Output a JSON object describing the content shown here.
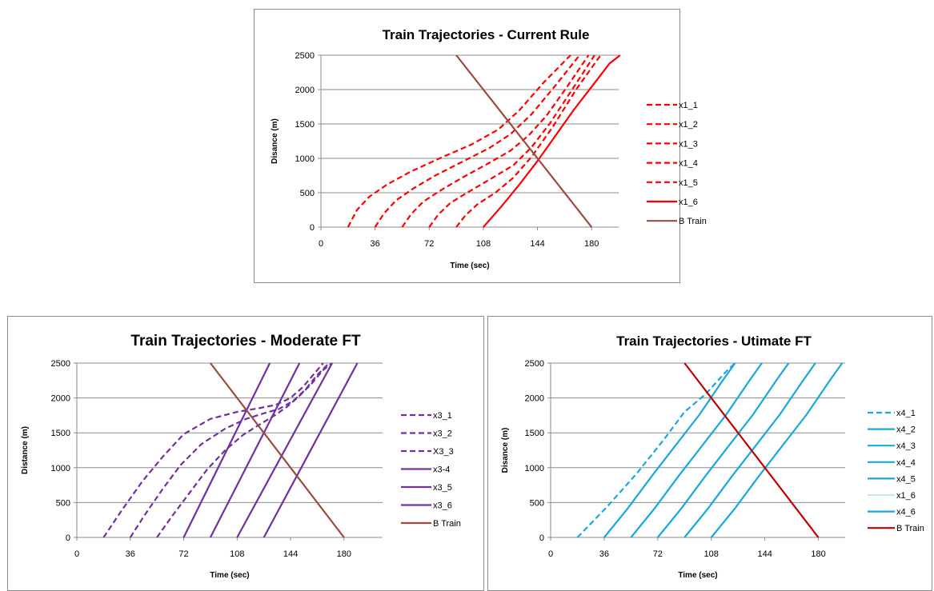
{
  "chart_data": [
    {
      "type": "line",
      "title": "Train Trajectories - Current Rule",
      "xlabel": "Time (sec)",
      "ylabel": "Disance (m)",
      "xlim": [
        0,
        198
      ],
      "ylim": [
        0,
        2500
      ],
      "xticks": [
        "0",
        "36",
        "72",
        "108",
        "144",
        "180"
      ],
      "yticks": [
        "0",
        "500",
        "1000",
        "1500",
        "2000",
        "2500"
      ],
      "grid": "horizontal",
      "legend": "right",
      "series": [
        {
          "name": "x1_1",
          "color": "#ff0000",
          "dash": true,
          "x": [
            18,
            24,
            32,
            44,
            60,
            80,
            100,
            118,
            132,
            148,
            166
          ],
          "y": [
            0,
            250,
            440,
            620,
            810,
            1010,
            1200,
            1420,
            1700,
            2100,
            2500
          ]
        },
        {
          "name": "x1_2",
          "color": "#ff0000",
          "dash": true,
          "x": [
            36,
            42,
            50,
            62,
            76,
            94,
            112,
            126,
            140,
            156,
            172
          ],
          "y": [
            0,
            200,
            390,
            570,
            750,
            950,
            1150,
            1350,
            1640,
            2060,
            2500
          ]
        },
        {
          "name": "x1_3",
          "color": "#ff0000",
          "dash": true,
          "x": [
            54,
            60,
            68,
            80,
            94,
            110,
            126,
            138,
            150,
            164,
            178
          ],
          "y": [
            0,
            190,
            370,
            540,
            720,
            910,
            1110,
            1330,
            1620,
            2050,
            2500
          ]
        },
        {
          "name": "x1_4",
          "color": "#ff0000",
          "dash": true,
          "x": [
            72,
            78,
            86,
            98,
            112,
            128,
            140,
            152,
            168,
            182
          ],
          "y": [
            0,
            180,
            350,
            510,
            690,
            900,
            1160,
            1500,
            2030,
            2500
          ]
        },
        {
          "name": "x1_5",
          "color": "#ff0000",
          "dash": true,
          "x": [
            90,
            96,
            104,
            116,
            128,
            140,
            154,
            170,
            186
          ],
          "y": [
            0,
            170,
            330,
            500,
            720,
            1020,
            1450,
            2010,
            2500
          ]
        },
        {
          "name": "x1_6",
          "color": "#ff0000",
          "dash": false,
          "x": [
            108,
            120,
            132,
            144,
            156,
            168,
            180,
            192,
            199
          ],
          "y": [
            0,
            300,
            620,
            960,
            1330,
            1700,
            2040,
            2380,
            2500
          ]
        },
        {
          "name": "B Train",
          "color": "#9a4a3e",
          "dash": false,
          "x": [
            90,
            180
          ],
          "y": [
            2500,
            0
          ]
        }
      ]
    },
    {
      "type": "line",
      "title": "Train Trajectories - Moderate FT",
      "xlabel": "Time (sec)",
      "ylabel": "Distance (m)",
      "xlim": [
        0,
        206
      ],
      "ylim": [
        0,
        2500
      ],
      "xticks": [
        "0",
        "36",
        "72",
        "108",
        "144",
        "180"
      ],
      "yticks": [
        "0",
        "500",
        "1000",
        "1500",
        "2000",
        "2500"
      ],
      "grid": "horizontal",
      "legend": "right",
      "series": [
        {
          "name": "x3_1",
          "color": "#7030a0",
          "dash": true,
          "x": [
            18,
            30,
            44,
            58,
            72,
            90,
            108,
            122,
            134,
            144,
            152,
            160,
            166
          ],
          "y": [
            0,
            380,
            800,
            1160,
            1480,
            1700,
            1800,
            1850,
            1900,
            2000,
            2150,
            2350,
            2500
          ]
        },
        {
          "name": "x3_2",
          "color": "#7030a0",
          "dash": true,
          "x": [
            36,
            46,
            58,
            70,
            84,
            100,
            114,
            126,
            136,
            146,
            154,
            162,
            170
          ],
          "y": [
            0,
            330,
            700,
            1040,
            1340,
            1560,
            1700,
            1780,
            1840,
            1960,
            2120,
            2330,
            2500
          ]
        },
        {
          "name": "X3_3",
          "color": "#7030a0",
          "dash": true,
          "x": [
            54,
            64,
            76,
            88,
            100,
            112,
            124,
            134,
            142,
            150,
            158,
            166,
            172
          ],
          "y": [
            0,
            300,
            640,
            980,
            1250,
            1470,
            1630,
            1760,
            1880,
            2030,
            2200,
            2400,
            2500
          ]
        },
        {
          "name": "x3-4",
          "color": "#7030a0",
          "dash": false,
          "x": [
            72,
            130
          ],
          "y": [
            0,
            2500
          ]
        },
        {
          "name": "x3_5",
          "color": "#7030a0",
          "dash": false,
          "x": [
            90,
            150
          ],
          "y": [
            0,
            2500
          ]
        },
        {
          "name": "x3_6",
          "color": "#7030a0",
          "dash": false,
          "x": [
            108,
            172
          ],
          "y": [
            0,
            2500
          ]
        },
        {
          "name": "",
          "color": "#7030a0",
          "dash": false,
          "x": [
            126,
            189
          ],
          "y": [
            0,
            2500
          ]
        },
        {
          "name": "B Train",
          "color": "#9a4a3e",
          "dash": false,
          "x": [
            90,
            180
          ],
          "y": [
            2500,
            0
          ]
        }
      ]
    },
    {
      "type": "line",
      "title": "Train Trajectories - Utimate FT",
      "xlabel": "Time (sec)",
      "ylabel": "Disance (m)",
      "xlim": [
        0,
        198
      ],
      "ylim": [
        0,
        2500
      ],
      "xticks": [
        "0",
        "36",
        "72",
        "108",
        "144",
        "180"
      ],
      "yticks": [
        "0",
        "500",
        "1000",
        "1500",
        "2000",
        "2500"
      ],
      "grid": "horizontal",
      "legend": "right",
      "series": [
        {
          "name": "x4_1",
          "color": "#1aa7dc",
          "dash": true,
          "x": [
            18,
            38,
            58,
            76,
            90,
            104,
            118,
            124
          ],
          "y": [
            0,
            440,
            920,
            1400,
            1800,
            2050,
            2380,
            2500
          ]
        },
        {
          "name": "x4_2",
          "color": "#1aa7dc",
          "dash": false,
          "x": [
            36,
            52,
            68,
            84,
            100,
            116,
            124
          ],
          "y": [
            0,
            420,
            880,
            1320,
            1760,
            2260,
            2500
          ]
        },
        {
          "name": "x4_3",
          "color": "#1aa7dc",
          "dash": false,
          "x": [
            54,
            70,
            86,
            102,
            118,
            134,
            142
          ],
          "y": [
            0,
            420,
            880,
            1320,
            1760,
            2260,
            2500
          ]
        },
        {
          "name": "x4_4",
          "color": "#1aa7dc",
          "dash": false,
          "x": [
            72,
            88,
            104,
            120,
            136,
            152,
            160
          ],
          "y": [
            0,
            420,
            880,
            1320,
            1760,
            2260,
            2500
          ]
        },
        {
          "name": "x4_5",
          "color": "#1aa7dc",
          "dash": false,
          "x": [
            90,
            106,
            122,
            138,
            154,
            170,
            178
          ],
          "y": [
            0,
            420,
            880,
            1320,
            1760,
            2260,
            2500
          ]
        },
        {
          "name": "x1_6",
          "color": "#9ac8e0",
          "dash": false,
          "thin": true,
          "x": [],
          "y": []
        },
        {
          "name": "x4_6",
          "color": "#1aa7dc",
          "dash": false,
          "x": [
            108,
            124,
            140,
            156,
            172,
            188,
            196
          ],
          "y": [
            0,
            420,
            880,
            1320,
            1760,
            2260,
            2500
          ]
        },
        {
          "name": "B Train",
          "color": "#c00000",
          "dash": false,
          "x": [
            90,
            180
          ],
          "y": [
            2500,
            0
          ]
        }
      ]
    }
  ]
}
